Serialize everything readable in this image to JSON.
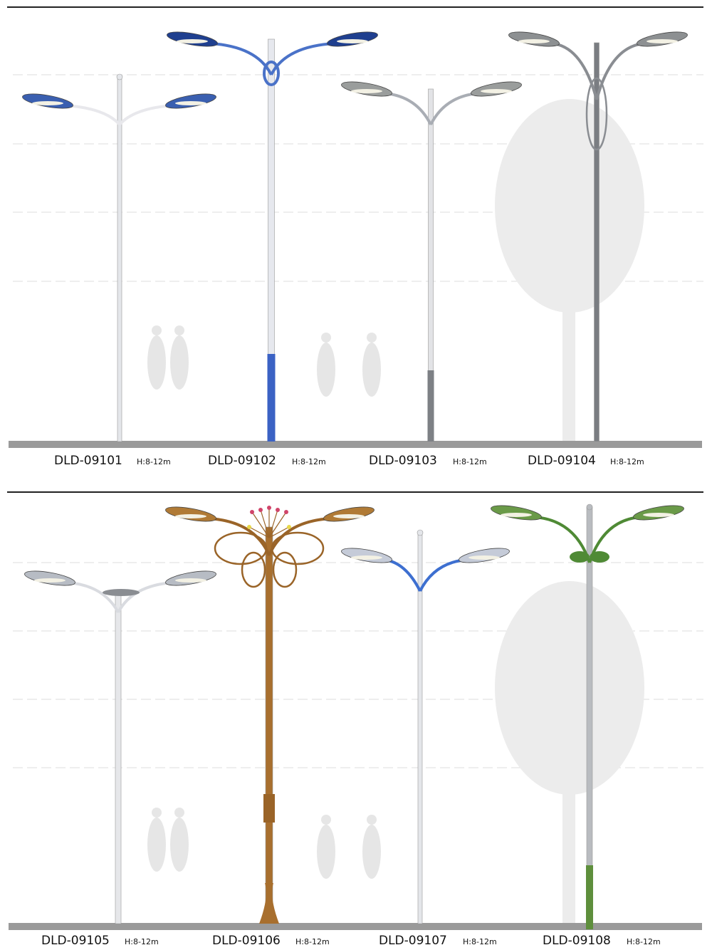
{
  "products": [
    {
      "code": "DLD-09101",
      "height": "H:8-12m",
      "pole_color": "#e4e6ea",
      "head_color": "#3a5fb0",
      "arm_color": "#e8e8ec"
    },
    {
      "code": "DLD-09102",
      "height": "H:8-12m",
      "pole_color": "#e6e8ee",
      "head_color": "#1f3f8f",
      "arm_color": "#4a72c8",
      "sleeve_color": "#3b62c4"
    },
    {
      "code": "DLD-09103",
      "height": "H:8-12m",
      "pole_color": "#e2e3e6",
      "head_color": "#9a9d9c",
      "arm_color": "#a9adb4",
      "sleeve_color": "#7d8085"
    },
    {
      "code": "DLD-09104",
      "height": "H:8-12m",
      "pole_color": "#7a7d82",
      "head_color": "#8d9092",
      "arm_color": "#8a8d92"
    },
    {
      "code": "DLD-09105",
      "height": "H:8-12m",
      "pole_color": "#e6e7ea",
      "head_color": "#b7bcc4",
      "arm_color": "#d9dbe0"
    },
    {
      "code": "DLD-09106",
      "height": "H:8-12m",
      "pole_color": "#a86f2e",
      "head_color": "#b07a35",
      "arm_color": "#9a6428"
    },
    {
      "code": "DLD-09107",
      "height": "H:8-12m",
      "pole_color": "#e4e6ea",
      "head_color": "#c5cbd8",
      "arm_color": "#3d6fd0"
    },
    {
      "code": "DLD-09108",
      "height": "H:8-12m",
      "pole_color": "#b9bcc0",
      "head_color": "#6a9a48",
      "arm_color": "#4f8a35",
      "sleeve_color": "#5e8f3c"
    }
  ],
  "ground_color": "#9a9a9a"
}
